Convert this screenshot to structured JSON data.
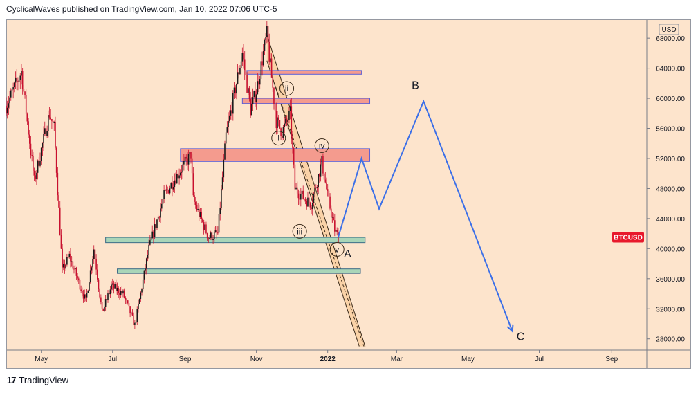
{
  "header": {
    "text": "CyclicalWaves published on TradingView.com, Jan 10, 2022 07:06 UTC-5"
  },
  "footer": {
    "logo_icon": "tradingview-logo-icon",
    "brand": "TradingView"
  },
  "colors": {
    "background": "#fde4cc",
    "candle": "#c8102e",
    "projection": "#3b6fe8",
    "resistance_fill": "#f49b8e",
    "support_fill": "#a9d5b8",
    "channel_fill": "#f9cfa0",
    "price_tag": "#e8192c"
  },
  "chart_data": {
    "type": "candlestick",
    "symbol": "BTCUSD",
    "currency": "USD",
    "y_ticks": [
      28000,
      32000,
      36000,
      40000,
      44000,
      48000,
      52000,
      56000,
      60000,
      64000,
      68000
    ],
    "y_tick_labels": [
      "28000.00",
      "32000.00",
      "36000.00",
      "40000.00",
      "44000.00",
      "48000.00",
      "52000.00",
      "56000.00",
      "60000.00",
      "64000.00",
      "68000.00"
    ],
    "ylim": [
      26500,
      70500
    ],
    "x_range": [
      "2021-04-01",
      "2022-10-01"
    ],
    "x_ticks": [
      {
        "label": "May",
        "date": "2021-05-01"
      },
      {
        "label": "Jul",
        "date": "2021-07-01"
      },
      {
        "label": "Sep",
        "date": "2021-09-01"
      },
      {
        "label": "Nov",
        "date": "2021-11-01"
      },
      {
        "label": "2022",
        "date": "2022-01-01"
      },
      {
        "label": "Mar",
        "date": "2022-03-01"
      },
      {
        "label": "May",
        "date": "2022-05-01"
      },
      {
        "label": "Jul",
        "date": "2022-07-01"
      },
      {
        "label": "Sep",
        "date": "2022-09-01"
      }
    ],
    "price_path": [
      [
        "2021-04-01",
        59000
      ],
      [
        "2021-04-14",
        63500
      ],
      [
        "2021-04-25",
        49000
      ],
      [
        "2021-05-08",
        58000
      ],
      [
        "2021-05-12",
        56000
      ],
      [
        "2021-05-19",
        37000
      ],
      [
        "2021-05-25",
        39000
      ],
      [
        "2021-06-08",
        33000
      ],
      [
        "2021-06-15",
        40000
      ],
      [
        "2021-06-22",
        31500
      ],
      [
        "2021-06-30",
        35000
      ],
      [
        "2021-07-10",
        34000
      ],
      [
        "2021-07-20",
        29800
      ],
      [
        "2021-08-01",
        40000
      ],
      [
        "2021-08-14",
        47000
      ],
      [
        "2021-08-24",
        49500
      ],
      [
        "2021-09-06",
        52500
      ],
      [
        "2021-09-08",
        46500
      ],
      [
        "2021-09-21",
        41500
      ],
      [
        "2021-09-29",
        42000
      ],
      [
        "2021-10-06",
        55000
      ],
      [
        "2021-10-20",
        66000
      ],
      [
        "2021-10-27",
        58500
      ],
      [
        "2021-11-01",
        61000
      ],
      [
        "2021-11-10",
        68500
      ],
      [
        "2021-11-18",
        57000
      ],
      [
        "2021-11-23",
        55500
      ],
      [
        "2021-11-30",
        58000
      ],
      [
        "2021-12-04",
        48000
      ],
      [
        "2021-12-13",
        46500
      ],
      [
        "2021-12-18",
        46000
      ],
      [
        "2021-12-27",
        51500
      ],
      [
        "2022-01-01",
        47000
      ],
      [
        "2022-01-07",
        42500
      ],
      [
        "2022-01-10",
        41500
      ]
    ],
    "zones": [
      {
        "kind": "resistance",
        "from": "2021-10-24",
        "to": "2022-01-30",
        "low": 63200,
        "high": 63700
      },
      {
        "kind": "resistance",
        "from": "2021-10-20",
        "to": "2022-02-06",
        "low": 59300,
        "high": 60000
      },
      {
        "kind": "resistance",
        "from": "2021-08-28",
        "to": "2022-02-06",
        "low": 51600,
        "high": 53300
      },
      {
        "kind": "support",
        "from": "2021-06-25",
        "to": "2022-02-02",
        "low": 40800,
        "high": 41500
      },
      {
        "kind": "support",
        "from": "2021-07-05",
        "to": "2022-01-29",
        "low": 36700,
        "high": 37300
      }
    ],
    "channel": {
      "upper": [
        [
          "2021-11-10",
          68500
        ],
        [
          "2022-02-02",
          27000
        ]
      ],
      "lower": [
        [
          "2021-11-10",
          65000
        ],
        [
          "2022-01-28",
          27000
        ]
      ],
      "mid": [
        [
          "2021-11-11",
          64500
        ],
        [
          "2022-02-01",
          27000
        ]
      ]
    },
    "projection": [
      [
        "2022-01-10",
        41500
      ],
      [
        "2022-01-30",
        52000
      ],
      [
        "2022-02-14",
        45300
      ],
      [
        "2022-03-24",
        59600
      ],
      [
        "2022-06-08",
        29000
      ]
    ],
    "wave_labels": [
      {
        "label": "i",
        "date": "2021-11-20",
        "value": 54700
      },
      {
        "label": "ii",
        "date": "2021-11-27",
        "value": 61300
      },
      {
        "label": "iii",
        "date": "2021-12-08",
        "value": 42300
      },
      {
        "label": "iv",
        "date": "2021-12-27",
        "value": 53700
      },
      {
        "label": "v",
        "date": "2022-01-09",
        "value": 39900
      }
    ],
    "corrective_labels": [
      {
        "label": "A",
        "date": "2022-01-18",
        "value": 39400
      },
      {
        "label": "B",
        "date": "2022-03-17",
        "value": 61800
      },
      {
        "label": "C",
        "date": "2022-06-15",
        "value": 28400
      }
    ],
    "last_price_tag": {
      "label": "BTCUSD",
      "value": 41500
    }
  }
}
